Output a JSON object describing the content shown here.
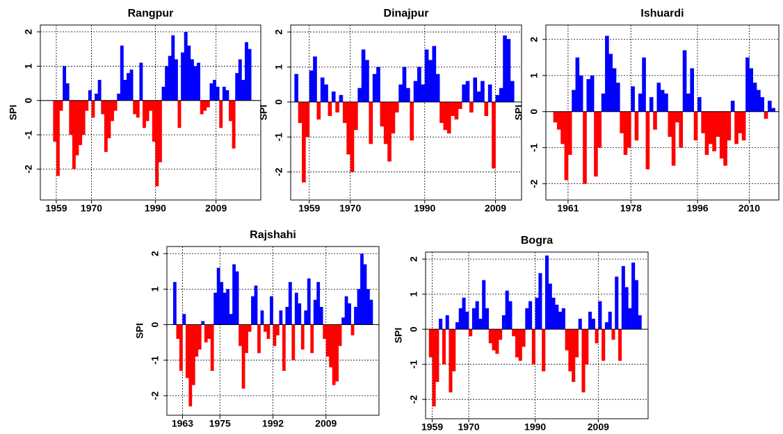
{
  "chart_data": [
    {
      "type": "bar",
      "title": "Rangpur",
      "y_label": "SPI",
      "grid": true,
      "positive_color": "#0000ff",
      "negative_color": "#ff0000",
      "xlim": [
        1954,
        2023
      ],
      "xticks": [
        1959,
        1970,
        1990,
        2009
      ],
      "ylim": [
        -2.9,
        2.2
      ],
      "yticks": [
        -2,
        -1,
        0,
        1,
        2
      ],
      "x": [
        1958,
        1959,
        1960,
        1961,
        1962,
        1963,
        1964,
        1965,
        1966,
        1967,
        1968,
        1969,
        1970,
        1971,
        1972,
        1973,
        1974,
        1975,
        1976,
        1977,
        1978,
        1979,
        1980,
        1981,
        1982,
        1983,
        1984,
        1985,
        1986,
        1987,
        1988,
        1989,
        1990,
        1991,
        1992,
        1993,
        1994,
        1995,
        1996,
        1997,
        1998,
        1999,
        2000,
        2001,
        2002,
        2003,
        2004,
        2005,
        2006,
        2007,
        2008,
        2009,
        2010,
        2011,
        2012,
        2013,
        2014,
        2015,
        2016,
        2017,
        2018,
        2019
      ],
      "values": [
        -1.2,
        -2.2,
        -0.3,
        1.0,
        0.5,
        -1.0,
        -2.0,
        -1.6,
        -1.3,
        -1.0,
        -0.3,
        0.3,
        -0.5,
        0.2,
        0.6,
        -0.4,
        -1.5,
        -1.1,
        -0.6,
        -0.3,
        0.2,
        1.6,
        0.6,
        0.8,
        0.9,
        -0.4,
        -0.5,
        1.1,
        -0.8,
        -0.6,
        -0.3,
        -1.2,
        -2.5,
        -1.8,
        0.4,
        1.0,
        1.3,
        1.9,
        1.2,
        -0.8,
        1.4,
        2.0,
        1.6,
        1.2,
        1.0,
        1.1,
        -0.4,
        -0.3,
        -0.2,
        0.5,
        0.6,
        0.4,
        -0.8,
        0.4,
        0.3,
        -0.6,
        -1.4,
        0.8,
        1.2,
        0.6,
        1.7,
        1.5
      ]
    },
    {
      "type": "bar",
      "title": "Dinajpur",
      "y_label": "SPI",
      "grid": true,
      "positive_color": "#0000ff",
      "negative_color": "#ff0000",
      "xlim": [
        1954,
        2016
      ],
      "xticks": [
        1959,
        1970,
        1990,
        2009
      ],
      "ylim": [
        -2.8,
        2.2
      ],
      "yticks": [
        -2,
        -1,
        0,
        1,
        2
      ],
      "x": [
        1955,
        1956,
        1957,
        1958,
        1959,
        1960,
        1961,
        1962,
        1963,
        1964,
        1965,
        1966,
        1967,
        1968,
        1969,
        1970,
        1971,
        1972,
        1973,
        1974,
        1975,
        1976,
        1977,
        1978,
        1979,
        1980,
        1981,
        1982,
        1983,
        1984,
        1985,
        1986,
        1987,
        1988,
        1989,
        1990,
        1991,
        1992,
        1993,
        1994,
        1995,
        1996,
        1997,
        1998,
        1999,
        2000,
        2001,
        2002,
        2003,
        2004,
        2005,
        2006,
        2007,
        2008,
        2009,
        2010,
        2011,
        2012,
        2013
      ],
      "values": [
        0.8,
        -0.6,
        -2.3,
        -1.0,
        0.9,
        1.3,
        -0.5,
        0.7,
        0.5,
        -0.4,
        0.3,
        -0.3,
        0.2,
        -0.6,
        -1.5,
        -2.0,
        -0.8,
        0.4,
        1.5,
        1.2,
        -1.2,
        0.8,
        1.0,
        -0.7,
        -1.2,
        -1.7,
        -0.9,
        -0.3,
        0.5,
        1.0,
        0.4,
        -1.1,
        0.6,
        1.0,
        0.5,
        1.5,
        1.2,
        1.6,
        0.8,
        -0.6,
        -0.8,
        -0.9,
        -0.4,
        -0.5,
        -0.2,
        0.5,
        0.6,
        -0.3,
        0.7,
        0.3,
        0.6,
        -0.4,
        0.5,
        -1.9,
        0.2,
        0.4,
        1.9,
        1.8,
        0.6
      ]
    },
    {
      "type": "bar",
      "title": "Ishuardi",
      "y_label": "SPI",
      "grid": true,
      "positive_color": "#0000ff",
      "negative_color": "#ff0000",
      "xlim": [
        1955,
        2018
      ],
      "xticks": [
        1961,
        1978,
        1996,
        2010
      ],
      "ylim": [
        -2.45,
        2.4
      ],
      "yticks": [
        -2,
        -1,
        0,
        1,
        2
      ],
      "x": [
        1957,
        1958,
        1959,
        1960,
        1961,
        1962,
        1963,
        1964,
        1965,
        1966,
        1967,
        1968,
        1969,
        1970,
        1971,
        1972,
        1973,
        1974,
        1975,
        1976,
        1977,
        1978,
        1979,
        1980,
        1981,
        1982,
        1983,
        1984,
        1985,
        1986,
        1987,
        1988,
        1989,
        1990,
        1991,
        1992,
        1993,
        1994,
        1995,
        1996,
        1997,
        1998,
        1999,
        2000,
        2001,
        2002,
        2003,
        2004,
        2005,
        2006,
        2007,
        2008,
        2009,
        2010,
        2011,
        2012,
        2013,
        2014,
        2015,
        2016
      ],
      "values": [
        -0.3,
        -0.5,
        -0.9,
        -1.9,
        -1.2,
        0.6,
        1.5,
        1.0,
        -2.0,
        0.9,
        1.0,
        -1.8,
        -1.0,
        0.5,
        2.1,
        1.6,
        1.2,
        0.8,
        -0.6,
        -1.2,
        -1.0,
        0.7,
        -0.8,
        0.5,
        1.5,
        -1.6,
        0.4,
        -0.5,
        0.8,
        0.6,
        0.5,
        -0.7,
        -1.5,
        -0.3,
        -1.0,
        1.7,
        0.5,
        1.2,
        -0.8,
        0.4,
        -0.6,
        -1.2,
        -0.9,
        -1.1,
        -0.7,
        -1.3,
        -1.5,
        -0.8,
        0.3,
        -0.9,
        -0.6,
        -0.8,
        1.5,
        1.2,
        0.8,
        0.6,
        0.4,
        -0.2,
        0.3,
        0.1
      ]
    },
    {
      "type": "bar",
      "title": "Rajshahi",
      "y_label": "SPI",
      "grid": true,
      "positive_color": "#0000ff",
      "negative_color": "#ff0000",
      "xlim": [
        1958,
        2026
      ],
      "xticks": [
        1963,
        1975,
        1992,
        2009
      ],
      "ylim": [
        -2.55,
        2.2
      ],
      "yticks": [
        -2,
        -1,
        0,
        1,
        2
      ],
      "x": [
        1960,
        1961,
        1962,
        1963,
        1964,
        1965,
        1966,
        1967,
        1968,
        1969,
        1970,
        1971,
        1972,
        1973,
        1974,
        1975,
        1976,
        1977,
        1978,
        1979,
        1980,
        1981,
        1982,
        1983,
        1984,
        1985,
        1986,
        1987,
        1988,
        1989,
        1990,
        1991,
        1992,
        1993,
        1994,
        1995,
        1996,
        1997,
        1998,
        1999,
        2000,
        2001,
        2002,
        2003,
        2004,
        2005,
        2006,
        2007,
        2008,
        2009,
        2010,
        2011,
        2012,
        2013,
        2014,
        2015,
        2016,
        2017,
        2018,
        2019,
        2020,
        2021,
        2022,
        2023
      ],
      "values": [
        1.2,
        -0.4,
        -1.3,
        0.3,
        -1.5,
        -2.3,
        -1.7,
        -0.9,
        -0.7,
        0.1,
        -0.5,
        -0.4,
        -1.3,
        0.9,
        1.6,
        1.2,
        0.9,
        1.0,
        0.3,
        1.7,
        1.5,
        -0.6,
        -1.8,
        -0.8,
        -0.2,
        0.8,
        1.1,
        -0.8,
        0.4,
        -0.2,
        -0.4,
        0.8,
        -0.6,
        -0.3,
        0.4,
        -1.3,
        0.5,
        1.2,
        -1.0,
        0.9,
        0.6,
        -0.7,
        0.4,
        1.3,
        -0.8,
        0.7,
        1.2,
        0.5,
        -0.4,
        -0.9,
        -1.2,
        -1.7,
        -1.6,
        -0.6,
        0.2,
        0.8,
        0.6,
        -0.3,
        0.5,
        1.0,
        2.0,
        1.7,
        1.0,
        0.7
      ]
    },
    {
      "type": "bar",
      "title": "Bogra",
      "y_label": "SPI",
      "grid": true,
      "positive_color": "#0000ff",
      "negative_color": "#ff0000",
      "xlim": [
        1957,
        2024
      ],
      "xticks": [
        1959,
        1970,
        1990,
        2009
      ],
      "ylim": [
        -2.55,
        2.2
      ],
      "yticks": [
        -2,
        -1,
        0,
        1,
        2
      ],
      "x": [
        1958,
        1959,
        1960,
        1961,
        1962,
        1963,
        1964,
        1965,
        1966,
        1967,
        1968,
        1969,
        1970,
        1971,
        1972,
        1973,
        1974,
        1975,
        1976,
        1977,
        1978,
        1979,
        1980,
        1981,
        1982,
        1983,
        1984,
        1985,
        1986,
        1987,
        1988,
        1989,
        1990,
        1991,
        1992,
        1993,
        1994,
        1995,
        1996,
        1997,
        1998,
        1999,
        2000,
        2001,
        2002,
        2003,
        2004,
        2005,
        2006,
        2007,
        2008,
        2009,
        2010,
        2011,
        2012,
        2013,
        2014,
        2015,
        2016,
        2017,
        2018,
        2019,
        2020,
        2021
      ],
      "values": [
        -0.8,
        -2.2,
        -1.5,
        0.3,
        -1.0,
        0.4,
        -1.8,
        -1.2,
        0.2,
        0.6,
        0.9,
        0.5,
        -0.2,
        0.6,
        0.8,
        0.3,
        1.4,
        0.6,
        -0.4,
        -0.6,
        -0.7,
        -0.3,
        0.4,
        1.1,
        0.8,
        -0.2,
        -0.8,
        -0.9,
        -0.5,
        0.6,
        0.8,
        -1.0,
        0.9,
        1.6,
        -1.2,
        2.1,
        1.3,
        0.9,
        0.7,
        0.5,
        0.6,
        -0.6,
        -1.2,
        -1.5,
        -0.8,
        0.3,
        -1.8,
        -1.0,
        0.5,
        0.3,
        -0.4,
        0.8,
        -0.9,
        0.2,
        0.5,
        -0.3,
        1.5,
        -0.9,
        1.8,
        1.2,
        0.6,
        1.9,
        1.4,
        0.4
      ]
    }
  ]
}
